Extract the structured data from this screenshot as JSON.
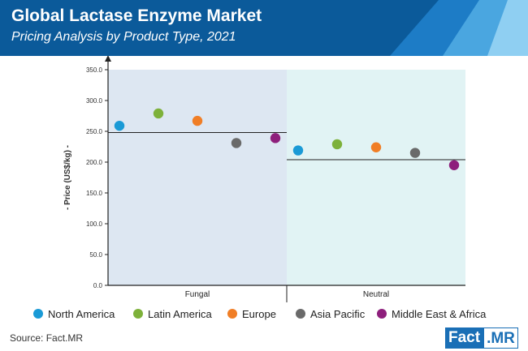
{
  "header": {
    "title": "Global Lactase Enzyme Market",
    "subtitle": "Pricing Analysis by Product Type, 2021"
  },
  "footer": {
    "source": "Source: Fact.MR",
    "logo_part1": "Fact",
    "logo_part2": ".MR"
  },
  "colors": {
    "header_bg": "#0b5a9a",
    "fungal_bg": "#dde7f2",
    "neutral_bg": "#e1f3f4",
    "North America": "#1a9ad6",
    "Latin America": "#7db13a",
    "Europe": "#f07e26",
    "Asia Pacific": "#6a6a6a",
    "Middle East & Africa": "#8e1f7c"
  },
  "chart_data": {
    "type": "scatter",
    "title": "Pricing Analysis by Product Type, 2021",
    "ylabel": "- Price (US$/kg) -",
    "xlabel": "",
    "ylim": [
      0,
      350
    ],
    "yticks": [
      "0.0",
      "50.0",
      "100.0",
      "150.0",
      "200.0",
      "250.0",
      "300.0",
      "350.0"
    ],
    "categories": [
      "Fungal",
      "Neutral"
    ],
    "category_averages": [
      248,
      204
    ],
    "legend_position": "bottom",
    "series": [
      {
        "name": "North America",
        "values": [
          259,
          219
        ]
      },
      {
        "name": "Latin America",
        "values": [
          279,
          229
        ]
      },
      {
        "name": "Europe",
        "values": [
          267,
          224
        ]
      },
      {
        "name": "Asia Pacific",
        "values": [
          231,
          215
        ]
      },
      {
        "name": "Middle East & Africa",
        "values": [
          239,
          195
        ]
      }
    ]
  }
}
